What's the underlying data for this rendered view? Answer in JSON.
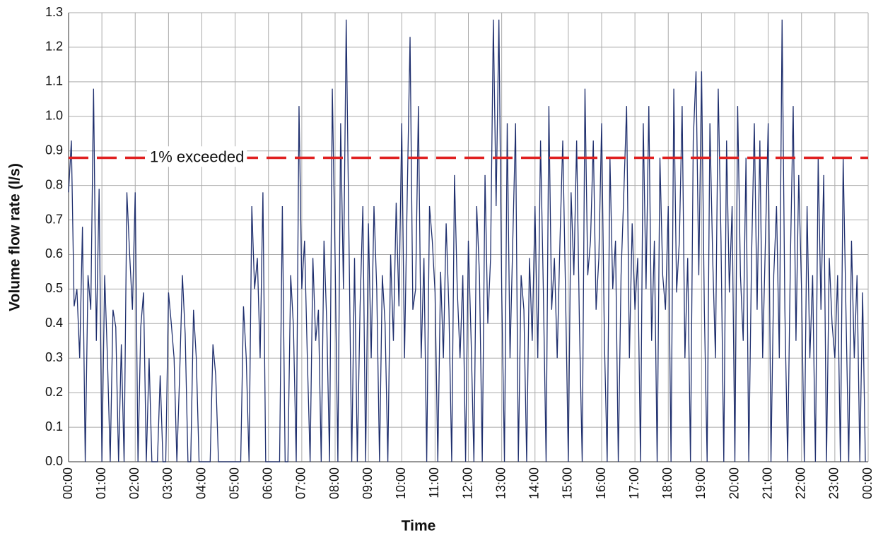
{
  "chart_data": {
    "type": "line",
    "xlabel": "Time",
    "ylabel": "Volume flow rate (l/s)",
    "color": "#1f2f6e",
    "xlim": [
      0,
      1440
    ],
    "xticks": [
      {
        "value": 0,
        "label": "00:00"
      },
      {
        "value": 60,
        "label": "01:00"
      },
      {
        "value": 120,
        "label": "02:00"
      },
      {
        "value": 180,
        "label": "03:00"
      },
      {
        "value": 240,
        "label": "04:00"
      },
      {
        "value": 300,
        "label": "05:00"
      },
      {
        "value": 360,
        "label": "06:00"
      },
      {
        "value": 420,
        "label": "07:00"
      },
      {
        "value": 480,
        "label": "08:00"
      },
      {
        "value": 540,
        "label": "09:00"
      },
      {
        "value": 600,
        "label": "10:00"
      },
      {
        "value": 660,
        "label": "11:00"
      },
      {
        "value": 720,
        "label": "12:00"
      },
      {
        "value": 780,
        "label": "13:00"
      },
      {
        "value": 840,
        "label": "14:00"
      },
      {
        "value": 900,
        "label": "15:00"
      },
      {
        "value": 960,
        "label": "16:00"
      },
      {
        "value": 1020,
        "label": "17:00"
      },
      {
        "value": 1080,
        "label": "18:00"
      },
      {
        "value": 1140,
        "label": "19:00"
      },
      {
        "value": 1200,
        "label": "20:00"
      },
      {
        "value": 1260,
        "label": "21:00"
      },
      {
        "value": 1320,
        "label": "22:00"
      },
      {
        "value": 1380,
        "label": "23:00"
      },
      {
        "value": 1440,
        "label": "00:00"
      }
    ],
    "ylim": [
      0,
      1.3
    ],
    "yticks": [
      {
        "value": 0,
        "label": "0.0"
      },
      0.1,
      0.2,
      0.3,
      0.4,
      0.5,
      0.6,
      0.7,
      0.8,
      0.9,
      {
        "value": 1,
        "label": "1.0"
      },
      1.1,
      1.2,
      1.3
    ],
    "grid": true,
    "threshold": {
      "value": 0.88,
      "label": "1% exceeded",
      "color": "#e02020"
    },
    "x": [
      0,
      5,
      10,
      15,
      20,
      25,
      30,
      35,
      40,
      45,
      50,
      55,
      60,
      65,
      70,
      75,
      80,
      85,
      90,
      95,
      100,
      105,
      110,
      115,
      120,
      125,
      130,
      135,
      140,
      145,
      150,
      155,
      160,
      165,
      170,
      175,
      180,
      185,
      190,
      195,
      200,
      205,
      210,
      215,
      220,
      225,
      230,
      235,
      240,
      245,
      250,
      255,
      260,
      265,
      270,
      275,
      280,
      285,
      290,
      295,
      300,
      305,
      310,
      315,
      320,
      325,
      330,
      335,
      340,
      345,
      350,
      355,
      360,
      365,
      370,
      375,
      380,
      385,
      390,
      395,
      400,
      405,
      410,
      415,
      420,
      425,
      430,
      435,
      440,
      445,
      450,
      455,
      460,
      465,
      470,
      475,
      480,
      485,
      490,
      495,
      500,
      505,
      510,
      515,
      520,
      525,
      530,
      535,
      540,
      545,
      550,
      555,
      560,
      565,
      570,
      575,
      580,
      585,
      590,
      595,
      600,
      605,
      610,
      615,
      620,
      625,
      630,
      635,
      640,
      645,
      650,
      655,
      660,
      665,
      670,
      675,
      680,
      685,
      690,
      695,
      700,
      705,
      710,
      715,
      720,
      725,
      730,
      735,
      740,
      745,
      750,
      755,
      760,
      765,
      770,
      775,
      780,
      785,
      790,
      795,
      800,
      805,
      810,
      815,
      820,
      825,
      830,
      835,
      840,
      845,
      850,
      855,
      860,
      865,
      870,
      875,
      880,
      885,
      890,
      895,
      900,
      905,
      910,
      915,
      920,
      925,
      930,
      935,
      940,
      945,
      950,
      955,
      960,
      965,
      970,
      975,
      980,
      985,
      990,
      995,
      1000,
      1005,
      1010,
      1015,
      1020,
      1025,
      1030,
      1035,
      1040,
      1045,
      1050,
      1055,
      1060,
      1065,
      1070,
      1075,
      1080,
      1085,
      1090,
      1095,
      1100,
      1105,
      1110,
      1115,
      1120,
      1125,
      1130,
      1135,
      1140,
      1145,
      1150,
      1155,
      1160,
      1165,
      1170,
      1175,
      1180,
      1185,
      1190,
      1195,
      1200,
      1205,
      1210,
      1215,
      1220,
      1225,
      1230,
      1235,
      1240,
      1245,
      1250,
      1255,
      1260,
      1265,
      1270,
      1275,
      1280,
      1285,
      1290,
      1295,
      1300,
      1305,
      1310,
      1315,
      1320,
      1325,
      1330,
      1335,
      1340,
      1345,
      1350,
      1355,
      1360,
      1365,
      1370,
      1375,
      1380,
      1385,
      1390,
      1395,
      1400,
      1405,
      1410,
      1415,
      1420,
      1425,
      1430,
      1435
    ],
    "values": [
      0.78,
      0.93,
      0.45,
      0.5,
      0.3,
      0.68,
      0.0,
      0.54,
      0.44,
      1.08,
      0.35,
      0.79,
      0.0,
      0.54,
      0.3,
      0.0,
      0.44,
      0.39,
      0.0,
      0.34,
      0.0,
      0.78,
      0.6,
      0.44,
      0.78,
      0.0,
      0.39,
      0.49,
      0.0,
      0.3,
      0.0,
      0.0,
      0.0,
      0.25,
      0.0,
      0.0,
      0.49,
      0.4,
      0.3,
      0.0,
      0.25,
      0.54,
      0.37,
      0.0,
      0.0,
      0.44,
      0.3,
      0.0,
      0.0,
      0.0,
      0.0,
      0.0,
      0.34,
      0.25,
      0.0,
      0.0,
      0.0,
      0.0,
      0.0,
      0.0,
      0.0,
      0.0,
      0.0,
      0.45,
      0.3,
      0.0,
      0.74,
      0.5,
      0.59,
      0.3,
      0.78,
      0.0,
      0.0,
      0.0,
      0.0,
      0.0,
      0.0,
      0.74,
      0.0,
      0.0,
      0.54,
      0.39,
      0.0,
      1.03,
      0.5,
      0.64,
      0.3,
      0.0,
      0.59,
      0.35,
      0.44,
      0.0,
      0.64,
      0.4,
      0.0,
      1.08,
      0.59,
      0.0,
      0.98,
      0.5,
      1.28,
      0.64,
      0.0,
      0.59,
      0.0,
      0.45,
      0.74,
      0.0,
      0.69,
      0.3,
      0.74,
      0.5,
      0.0,
      0.54,
      0.4,
      0.0,
      0.6,
      0.35,
      0.75,
      0.45,
      0.98,
      0.3,
      0.78,
      1.23,
      0.44,
      0.5,
      1.03,
      0.3,
      0.59,
      0.0,
      0.74,
      0.64,
      0.49,
      0.0,
      0.55,
      0.3,
      0.69,
      0.44,
      0.0,
      0.83,
      0.5,
      0.3,
      0.54,
      0.0,
      0.64,
      0.35,
      0.0,
      0.74,
      0.54,
      0.0,
      0.83,
      0.4,
      0.59,
      1.28,
      0.74,
      1.28,
      0.5,
      0.0,
      0.98,
      0.3,
      0.64,
      0.98,
      0.0,
      0.54,
      0.44,
      0.0,
      0.59,
      0.35,
      0.74,
      0.3,
      0.93,
      0.5,
      0.0,
      1.03,
      0.44,
      0.59,
      0.3,
      0.64,
      0.93,
      0.49,
      0.0,
      0.78,
      0.54,
      0.93,
      0.4,
      0.0,
      1.08,
      0.54,
      0.64,
      0.93,
      0.44,
      0.59,
      0.98,
      0.35,
      0.0,
      0.88,
      0.5,
      0.64,
      0.0,
      0.54,
      0.78,
      1.03,
      0.3,
      0.69,
      0.44,
      0.59,
      0.0,
      0.98,
      0.5,
      1.03,
      0.35,
      0.64,
      0.0,
      0.88,
      0.54,
      0.44,
      0.74,
      0.0,
      1.08,
      0.49,
      0.64,
      1.03,
      0.3,
      0.59,
      0.0,
      0.93,
      1.13,
      0.54,
      1.13,
      0.44,
      0.0,
      0.98,
      0.59,
      0.3,
      1.08,
      0.64,
      0.0,
      0.93,
      0.49,
      0.74,
      0.0,
      1.03,
      0.54,
      0.35,
      0.88,
      0.0,
      0.59,
      0.98,
      0.44,
      0.93,
      0.3,
      0.64,
      0.98,
      0.0,
      0.54,
      0.74,
      0.3,
      1.28,
      0.44,
      0.0,
      0.59,
      1.03,
      0.35,
      0.83,
      0.5,
      0.0,
      0.74,
      0.3,
      0.54,
      0.0,
      0.88,
      0.44,
      0.83,
      0.0,
      0.59,
      0.4,
      0.3,
      0.54,
      0.0,
      0.88,
      0.44,
      0.0,
      0.64,
      0.3,
      0.54,
      0.0,
      0.49,
      0.0
    ]
  }
}
